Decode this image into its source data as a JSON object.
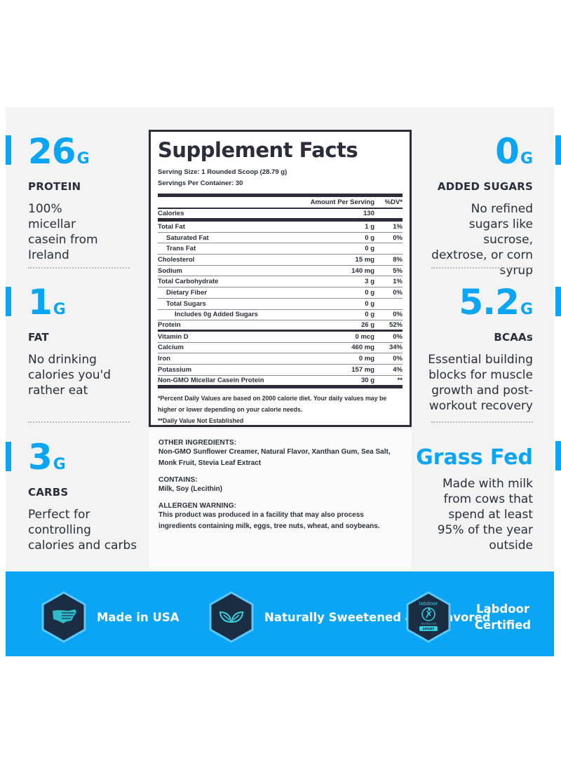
{
  "colors": {
    "accent": "#0aa6f5",
    "text_dark": "#2c2d3a",
    "panel_bg": "#f3f3f3",
    "badge_hex": "#1b2d42",
    "badge_icon": "#35d3e0"
  },
  "left_stats": [
    {
      "value": "26",
      "unit": "G",
      "label": "PROTEIN",
      "description": "100% micellar casein from Ireland"
    },
    {
      "value": "1",
      "unit": "G",
      "label": "FAT",
      "description": "No drinking calories you'd rather eat"
    },
    {
      "value": "3",
      "unit": "G",
      "label": "CARBS",
      "description": "Perfect for controlling calories and carbs"
    }
  ],
  "right_stats": [
    {
      "value": "0",
      "unit": "G",
      "label": "ADDED SUGARS",
      "description": "No refined sugars like sucrose, dextrose, or corn syrup"
    },
    {
      "value": "5.2",
      "unit": "G",
      "label": "BCAAs",
      "description": "Essential building blocks for muscle growth and post-workout recovery"
    },
    {
      "value": "Grass Fed",
      "unit": "",
      "label": "",
      "description": "Made with milk from cows that spend at least 95% of the year outside"
    }
  ],
  "facts": {
    "title": "Supplement Facts",
    "serving_size": "Serving Size: 1 Rounded Scoop (28.79 g)",
    "servings_per_container": "Servings Per Container: 30",
    "header": {
      "amount": "Amount Per Serving",
      "dv": "%DV*"
    },
    "calories": {
      "name": "Calories",
      "amount": "130",
      "dv": ""
    },
    "rows": [
      {
        "name": "Total Fat",
        "amount": "1 g",
        "dv": "1%",
        "indent": 0
      },
      {
        "name": "Saturated Fat",
        "amount": "0 g",
        "dv": "0%",
        "indent": 1
      },
      {
        "name": "Trans Fat",
        "amount": "0 g",
        "dv": "",
        "indent": 1
      },
      {
        "name": "Cholesterol",
        "amount": "15 mg",
        "dv": "8%",
        "indent": 0
      },
      {
        "name": "Sodium",
        "amount": "140 mg",
        "dv": "5%",
        "indent": 0
      },
      {
        "name": "Total Carbohydrate",
        "amount": "3 g",
        "dv": "1%",
        "indent": 0
      },
      {
        "name": "Dietary Fiber",
        "amount": "0 g",
        "dv": "0%",
        "indent": 1
      },
      {
        "name": "Total Sugars",
        "amount": "0 g",
        "dv": "",
        "indent": 1
      },
      {
        "name": "Includes 0g Added Sugars",
        "amount": "0 g",
        "dv": "0%",
        "indent": 2
      },
      {
        "name": "Protein",
        "amount": "26 g",
        "dv": "52%",
        "indent": 0
      },
      {
        "name": "Vitamin D",
        "amount": "0 mcg",
        "dv": "0%",
        "indent": 0
      },
      {
        "name": "Calcium",
        "amount": "460 mg",
        "dv": "34%",
        "indent": 0
      },
      {
        "name": "Iron",
        "amount": "0 mg",
        "dv": "0%",
        "indent": 0
      },
      {
        "name": "Potassium",
        "amount": "157 mg",
        "dv": "4%",
        "indent": 0
      },
      {
        "name": "Non-GMO Micellar Casein Protein",
        "amount": "30 g",
        "dv": "**",
        "indent": 0
      }
    ],
    "footnote_1": "*Percent Daily Values are based on 2000 calorie diet. Your daily values may be higher or lower depending on your calorie needs.",
    "footnote_2": "**Daily Value Not Established"
  },
  "ingredients": {
    "other_heading": "OTHER INGREDIENTS:",
    "other_text": "Non-GMO Sunflower Creamer, Natural Flavor, Xanthan Gum, Sea Salt, Monk Fruit, Stevia Leaf Extract",
    "contains_heading": "CONTAINS:",
    "contains_text": "Milk, Soy (Lecithin)",
    "allergen_heading": "ALLERGEN WARNING:",
    "allergen_text": "This product was produced in a facility that may also process ingredients containing milk, eggs, tree nuts, wheat, and soybeans."
  },
  "badges": [
    {
      "icon": "usa-map-icon",
      "label": "Made in USA"
    },
    {
      "icon": "leaves-icon",
      "label": "Naturally Sweetened and Flavored"
    },
    {
      "icon": "labdoor-seal-icon",
      "label": "Labdoor Certified",
      "seal_brand": "labdoor",
      "seal_tag": "SPORT",
      "seal_small": "TESTED FOR"
    }
  ]
}
